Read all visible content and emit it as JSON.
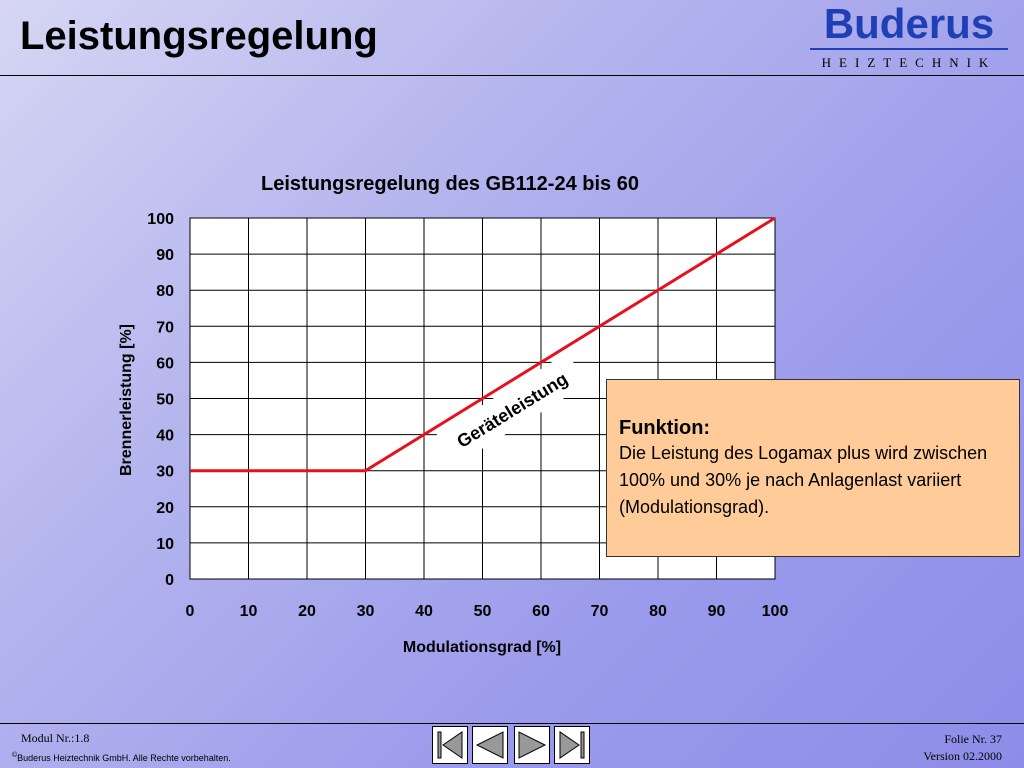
{
  "slide": {
    "title": "Leistungsregelung",
    "logo": {
      "brand": "Buderus",
      "sub": "HEIZTECHNIK",
      "color": "#1f3fb4"
    }
  },
  "callout": {
    "heading": "Funktion:",
    "body": "Die Leistung des Logamax plus wird zwischen 100% und 30% je nach Anlagenlast variiert (Modulationsgrad).",
    "background": "#ffcc99"
  },
  "footer": {
    "modul": "Modul Nr.:1.8",
    "copyright_symbol": "©",
    "copyright": "Buderus Heiztechnik GmbH. Alle Rechte vorbehalten.",
    "folie": "Folie Nr. 37",
    "version": "Version 02.2000"
  },
  "nav": [
    {
      "name": "first-slide-button",
      "icon": "first-icon"
    },
    {
      "name": "previous-slide-button",
      "icon": "previous-icon"
    },
    {
      "name": "next-slide-button",
      "icon": "next-icon"
    },
    {
      "name": "last-slide-button",
      "icon": "last-icon"
    }
  ],
  "chart_data": {
    "type": "line",
    "title": "Leistungsregelung des GB112-24 bis 60",
    "xlabel": "Modulationsgrad [%]",
    "ylabel": "Brennerleistung [%]",
    "xlim": [
      0,
      100
    ],
    "ylim": [
      0,
      100
    ],
    "x_ticks": [
      0,
      10,
      20,
      30,
      40,
      50,
      60,
      70,
      80,
      90,
      100
    ],
    "y_ticks": [
      0,
      10,
      20,
      30,
      40,
      50,
      60,
      70,
      80,
      90,
      100
    ],
    "grid": true,
    "series": [
      {
        "name": "Geräteleistung",
        "color": "#e8101e",
        "x": [
          0,
          30,
          100
        ],
        "y": [
          30,
          30,
          100
        ]
      }
    ],
    "annotation": {
      "text": "Geräteleistung",
      "x": 55,
      "y": 47
    }
  }
}
